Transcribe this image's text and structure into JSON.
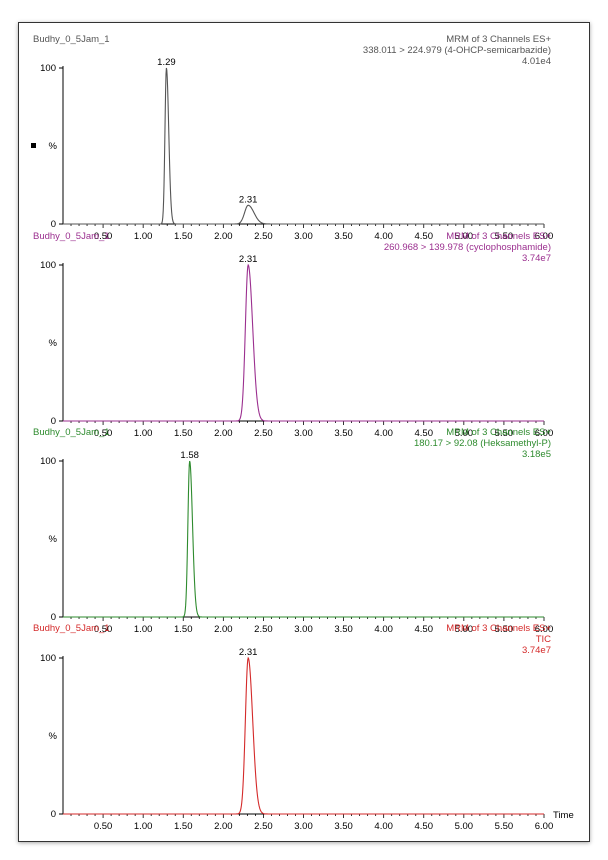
{
  "chart_data": [
    {
      "type": "line",
      "sample": "Budhy_0_5Jam_1",
      "title": "MRM of 3 Channels ES+",
      "channel": "338.011 > 224.979 (4-OHCP-semicarbazide)",
      "intensity": "4.01e4",
      "color": "#555555",
      "ylabel": "%",
      "yticks": [
        "0",
        "100"
      ],
      "xlim": [
        0,
        6.0
      ],
      "ylim": [
        0,
        100
      ],
      "xticks": [
        "0.50",
        "1.00",
        "1.50",
        "2.00",
        "2.50",
        "3.00",
        "3.50",
        "4.00",
        "4.50",
        "5.00",
        "5.50",
        "6.00"
      ],
      "xlabel": "",
      "peaks": [
        {
          "label": "1.29",
          "x": 1.29,
          "height": 100,
          "width": 0.018
        },
        {
          "label": "2.31",
          "x": 2.31,
          "height": 12,
          "width": 0.045
        }
      ]
    },
    {
      "type": "line",
      "sample": "Budhy_0_5Jam_1",
      "title": "MRM of 3 Channels ES+",
      "channel": "260.968 > 139.978 (cyclophosphamide)",
      "intensity": "3.74e7",
      "color": "#9b2f8f",
      "ylabel": "%",
      "yticks": [
        "0",
        "100"
      ],
      "xlim": [
        0,
        6.0
      ],
      "ylim": [
        0,
        100
      ],
      "xticks": [
        "0.50",
        "1.00",
        "1.50",
        "2.00",
        "2.50",
        "3.00",
        "3.50",
        "4.00",
        "4.50",
        "5.00",
        "5.50",
        "6.00"
      ],
      "xlabel": "",
      "peaks": [
        {
          "label": "2.31",
          "x": 2.31,
          "height": 100,
          "width": 0.035
        }
      ]
    },
    {
      "type": "line",
      "sample": "Budhy_0_5Jam_1",
      "title": "MRM of 3 Channels ES+",
      "channel": "180.17 > 92.08 (Heksamethyl-P)",
      "intensity": "3.18e5",
      "color": "#2e8b2e",
      "ylabel": "%",
      "yticks": [
        "0",
        "100"
      ],
      "xlim": [
        0,
        6.0
      ],
      "ylim": [
        0,
        100
      ],
      "xticks": [
        "0.50",
        "1.00",
        "1.50",
        "2.00",
        "2.50",
        "3.00",
        "3.50",
        "4.00",
        "4.50",
        "5.00",
        "5.50",
        "6.00"
      ],
      "xlabel": "",
      "peaks": [
        {
          "label": "1.58",
          "x": 1.58,
          "height": 100,
          "width": 0.022
        }
      ]
    },
    {
      "type": "line",
      "sample": "Budhy_0_5Jam_1",
      "title": "MRM of 3 Channels ES+",
      "channel": "TIC",
      "intensity": "3.74e7",
      "color": "#d42a2a",
      "ylabel": "%",
      "yticks": [
        "0",
        "100"
      ],
      "xlim": [
        0,
        6.0
      ],
      "ylim": [
        0,
        100
      ],
      "xticks": [
        "0.50",
        "1.00",
        "1.50",
        "2.00",
        "2.50",
        "3.00",
        "3.50",
        "4.00",
        "4.50",
        "5.00",
        "5.50",
        "6.00"
      ],
      "xlabel": "Time",
      "peaks": [
        {
          "label": "2.31",
          "x": 2.31,
          "height": 100,
          "width": 0.035
        }
      ]
    }
  ]
}
